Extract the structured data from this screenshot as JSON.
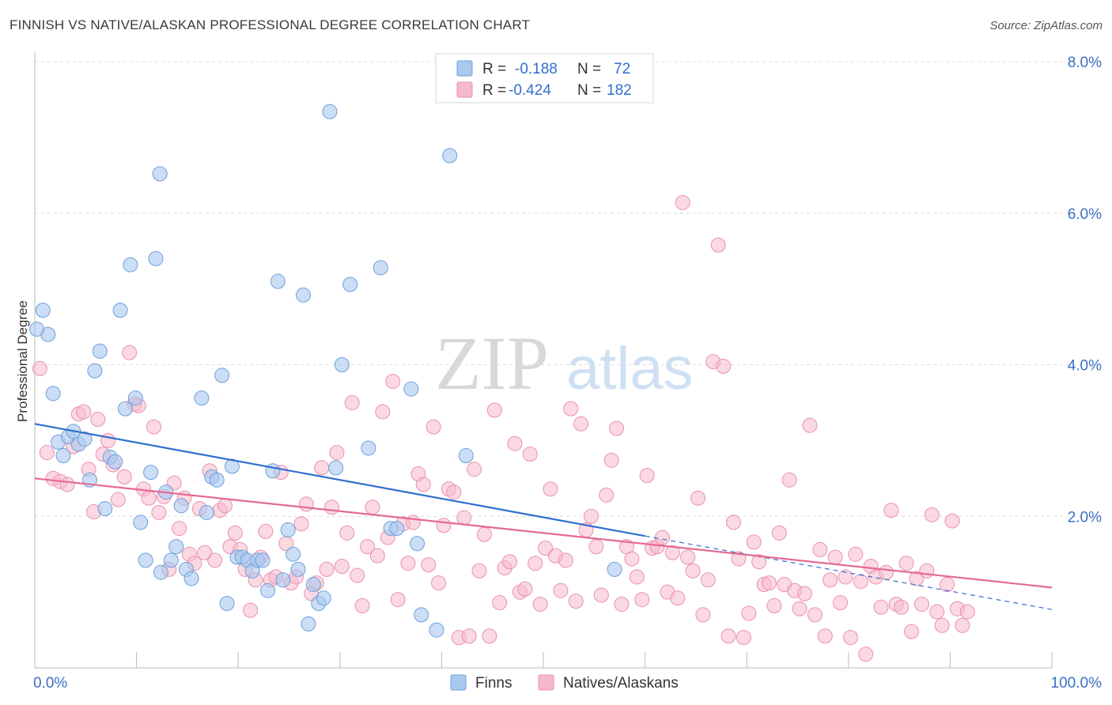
{
  "title": "FINNISH VS NATIVE/ALASKAN PROFESSIONAL DEGREE CORRELATION CHART",
  "source": "Source: ZipAtlas.com",
  "watermark": {
    "zip": "ZIP",
    "atlas": "atlas"
  },
  "legend": {
    "r_label": "R =",
    "n_label": "N =",
    "finns": {
      "r": "-0.188",
      "n": "72"
    },
    "natives": {
      "r": "-0.424",
      "n": "182"
    }
  },
  "bottom_legend": {
    "finns": "Finns",
    "natives": "Natives/Alaskans"
  },
  "colors": {
    "finns_fill": "#a9c8ee",
    "finns_stroke": "#6d9fdc",
    "finns_line": "#2f6fd0",
    "natives_fill": "#f6b9cc",
    "natives_stroke": "#ea90ae",
    "natives_line": "#e46a94",
    "axis_text": "#3c6fc4"
  },
  "chart_data": {
    "type": "scatter",
    "ylabel": "Professional Degree",
    "xlim": [
      0,
      100
    ],
    "ylim": [
      0,
      8.0
    ],
    "yticks": [
      {
        "value": 2.0,
        "label": "2.0%"
      },
      {
        "value": 4.0,
        "label": "4.0%"
      },
      {
        "value": 6.0,
        "label": "6.0%"
      },
      {
        "value": 8.0,
        "label": "8.0%"
      }
    ],
    "xticks": [
      {
        "value": 0,
        "label": "0.0%"
      },
      {
        "value": 100,
        "label": "100.0%"
      }
    ],
    "grid": true,
    "legend_position": "top-center",
    "series": [
      {
        "name": "Finns",
        "trend": {
          "x0": 0,
          "y0": 3.22,
          "x1": 60,
          "y1": 1.74,
          "dashed_to_x": 100,
          "dashed_to_y": 0.77
        },
        "points": [
          [
            0.8,
            4.72
          ],
          [
            1.3,
            4.4
          ],
          [
            1.8,
            3.62
          ],
          [
            2.3,
            2.98
          ],
          [
            2.8,
            2.8
          ],
          [
            3.3,
            3.05
          ],
          [
            3.8,
            3.12
          ],
          [
            4.3,
            2.95
          ],
          [
            4.9,
            3.02
          ],
          [
            5.4,
            2.48
          ],
          [
            5.9,
            3.92
          ],
          [
            6.4,
            4.18
          ],
          [
            6.9,
            2.1
          ],
          [
            7.4,
            2.78
          ],
          [
            7.9,
            2.72
          ],
          [
            8.4,
            4.72
          ],
          [
            8.9,
            3.42
          ],
          [
            9.4,
            5.32
          ],
          [
            9.9,
            3.56
          ],
          [
            10.4,
            1.92
          ],
          [
            10.9,
            1.42
          ],
          [
            11.4,
            2.58
          ],
          [
            11.9,
            5.4
          ],
          [
            12.4,
            1.26
          ],
          [
            12.9,
            2.32
          ],
          [
            13.4,
            1.42
          ],
          [
            13.9,
            1.6
          ],
          [
            14.4,
            2.14
          ],
          [
            14.9,
            1.3
          ],
          [
            15.4,
            1.18
          ],
          [
            12.3,
            6.52
          ],
          [
            16.4,
            3.56
          ],
          [
            16.9,
            2.05
          ],
          [
            17.4,
            2.52
          ],
          [
            17.9,
            2.48
          ],
          [
            18.4,
            3.86
          ],
          [
            18.9,
            0.85
          ],
          [
            19.4,
            2.66
          ],
          [
            19.9,
            1.46
          ],
          [
            20.4,
            1.46
          ],
          [
            20.9,
            1.42
          ],
          [
            21.4,
            1.28
          ],
          [
            21.9,
            1.42
          ],
          [
            22.4,
            1.42
          ],
          [
            22.9,
            1.02
          ],
          [
            23.4,
            2.6
          ],
          [
            23.9,
            5.1
          ],
          [
            24.4,
            1.16
          ],
          [
            24.9,
            1.82
          ],
          [
            25.4,
            1.5
          ],
          [
            25.9,
            1.3
          ],
          [
            26.4,
            4.92
          ],
          [
            26.9,
            0.58
          ],
          [
            27.4,
            1.1
          ],
          [
            27.9,
            0.85
          ],
          [
            28.4,
            0.92
          ],
          [
            29.0,
            7.34
          ],
          [
            29.6,
            2.64
          ],
          [
            30.2,
            4.0
          ],
          [
            31.0,
            5.06
          ],
          [
            32.8,
            2.9
          ],
          [
            34.0,
            5.28
          ],
          [
            35.0,
            1.84
          ],
          [
            35.6,
            1.84
          ],
          [
            37.0,
            3.68
          ],
          [
            38.0,
            0.7
          ],
          [
            37.6,
            1.64
          ],
          [
            39.5,
            0.5
          ],
          [
            40.8,
            6.76
          ],
          [
            42.4,
            2.8
          ],
          [
            57.0,
            1.3
          ],
          [
            0.2,
            4.47
          ]
        ]
      },
      {
        "name": "Natives/Alaskans",
        "trend": {
          "x0": 0,
          "y0": 2.5,
          "x1": 100,
          "y1": 1.06
        },
        "points": [
          [
            0.5,
            3.95
          ],
          [
            1.2,
            2.84
          ],
          [
            1.8,
            2.5
          ],
          [
            2.5,
            2.46
          ],
          [
            3.2,
            2.42
          ],
          [
            3.8,
            2.92
          ],
          [
            4.3,
            3.35
          ],
          [
            4.8,
            3.38
          ],
          [
            5.3,
            2.62
          ],
          [
            5.8,
            2.06
          ],
          [
            6.2,
            3.28
          ],
          [
            6.7,
            2.82
          ],
          [
            7.2,
            3.0
          ],
          [
            7.7,
            2.68
          ],
          [
            8.2,
            2.22
          ],
          [
            8.8,
            2.52
          ],
          [
            9.3,
            4.16
          ],
          [
            9.8,
            3.48
          ],
          [
            10.2,
            3.46
          ],
          [
            10.7,
            2.36
          ],
          [
            11.2,
            2.24
          ],
          [
            11.7,
            3.18
          ],
          [
            12.2,
            2.05
          ],
          [
            12.7,
            2.26
          ],
          [
            13.2,
            1.3
          ],
          [
            13.7,
            2.44
          ],
          [
            14.2,
            1.84
          ],
          [
            14.7,
            2.24
          ],
          [
            15.2,
            1.5
          ],
          [
            15.7,
            1.38
          ],
          [
            16.2,
            2.1
          ],
          [
            16.7,
            1.52
          ],
          [
            17.2,
            2.6
          ],
          [
            17.7,
            1.42
          ],
          [
            18.2,
            2.08
          ],
          [
            18.7,
            2.14
          ],
          [
            19.2,
            1.6
          ],
          [
            19.7,
            1.78
          ],
          [
            20.2,
            1.56
          ],
          [
            20.7,
            1.3
          ],
          [
            21.2,
            0.76
          ],
          [
            21.7,
            1.16
          ],
          [
            22.2,
            1.46
          ],
          [
            22.7,
            1.8
          ],
          [
            23.2,
            1.16
          ],
          [
            23.7,
            1.2
          ],
          [
            24.2,
            2.58
          ],
          [
            24.7,
            1.64
          ],
          [
            25.2,
            1.12
          ],
          [
            25.7,
            1.2
          ],
          [
            26.2,
            1.9
          ],
          [
            26.7,
            2.16
          ],
          [
            27.2,
            0.98
          ],
          [
            27.7,
            1.12
          ],
          [
            28.2,
            2.64
          ],
          [
            28.7,
            1.3
          ],
          [
            29.2,
            2.12
          ],
          [
            29.7,
            2.84
          ],
          [
            30.2,
            1.34
          ],
          [
            30.7,
            1.78
          ],
          [
            31.2,
            3.5
          ],
          [
            31.7,
            1.22
          ],
          [
            32.2,
            0.82
          ],
          [
            32.7,
            1.6
          ],
          [
            33.2,
            2.12
          ],
          [
            33.7,
            1.48
          ],
          [
            34.2,
            3.38
          ],
          [
            34.7,
            1.72
          ],
          [
            35.2,
            3.78
          ],
          [
            35.7,
            0.9
          ],
          [
            36.2,
            1.9
          ],
          [
            36.7,
            1.38
          ],
          [
            37.2,
            1.92
          ],
          [
            37.7,
            2.56
          ],
          [
            38.2,
            2.42
          ],
          [
            38.7,
            1.36
          ],
          [
            39.2,
            3.18
          ],
          [
            39.7,
            1.12
          ],
          [
            40.2,
            1.88
          ],
          [
            40.7,
            2.36
          ],
          [
            41.2,
            2.32
          ],
          [
            41.7,
            0.4
          ],
          [
            42.2,
            1.98
          ],
          [
            42.7,
            0.42
          ],
          [
            43.2,
            2.62
          ],
          [
            43.7,
            1.28
          ],
          [
            44.2,
            1.76
          ],
          [
            44.7,
            0.42
          ],
          [
            45.2,
            3.4
          ],
          [
            45.7,
            0.86
          ],
          [
            46.2,
            1.32
          ],
          [
            46.7,
            1.4
          ],
          [
            47.2,
            2.96
          ],
          [
            47.7,
            1.0
          ],
          [
            48.2,
            1.04
          ],
          [
            48.7,
            2.82
          ],
          [
            49.2,
            1.38
          ],
          [
            49.7,
            0.84
          ],
          [
            50.2,
            1.58
          ],
          [
            50.7,
            2.36
          ],
          [
            51.2,
            1.48
          ],
          [
            51.7,
            1.02
          ],
          [
            52.2,
            1.42
          ],
          [
            52.7,
            3.42
          ],
          [
            53.2,
            0.88
          ],
          [
            53.7,
            3.22
          ],
          [
            54.2,
            1.82
          ],
          [
            54.7,
            2.0
          ],
          [
            55.2,
            1.6
          ],
          [
            55.7,
            0.96
          ],
          [
            56.2,
            2.28
          ],
          [
            56.7,
            2.74
          ],
          [
            57.2,
            3.16
          ],
          [
            57.7,
            0.84
          ],
          [
            58.2,
            1.6
          ],
          [
            58.7,
            1.44
          ],
          [
            59.2,
            1.2
          ],
          [
            59.7,
            0.9
          ],
          [
            60.2,
            2.54
          ],
          [
            60.7,
            1.58
          ],
          [
            61.2,
            1.6
          ],
          [
            61.7,
            1.72
          ],
          [
            62.2,
            1.0
          ],
          [
            62.7,
            1.52
          ],
          [
            63.2,
            0.92
          ],
          [
            63.7,
            6.14
          ],
          [
            64.2,
            1.46
          ],
          [
            64.7,
            1.28
          ],
          [
            65.2,
            2.24
          ],
          [
            65.7,
            0.7
          ],
          [
            66.2,
            1.16
          ],
          [
            66.7,
            4.04
          ],
          [
            67.2,
            5.58
          ],
          [
            67.7,
            3.98
          ],
          [
            68.2,
            0.42
          ],
          [
            68.7,
            1.92
          ],
          [
            69.2,
            1.44
          ],
          [
            69.7,
            0.4
          ],
          [
            70.2,
            0.72
          ],
          [
            70.7,
            1.66
          ],
          [
            71.2,
            1.4
          ],
          [
            71.7,
            1.1
          ],
          [
            72.2,
            1.12
          ],
          [
            72.7,
            0.82
          ],
          [
            73.2,
            1.78
          ],
          [
            73.7,
            1.1
          ],
          [
            74.2,
            2.48
          ],
          [
            74.7,
            1.02
          ],
          [
            75.2,
            0.78
          ],
          [
            75.7,
            0.98
          ],
          [
            76.2,
            3.2
          ],
          [
            76.7,
            0.7
          ],
          [
            77.2,
            1.56
          ],
          [
            77.7,
            0.42
          ],
          [
            78.2,
            1.16
          ],
          [
            78.7,
            1.46
          ],
          [
            79.2,
            0.86
          ],
          [
            79.7,
            1.2
          ],
          [
            80.2,
            0.4
          ],
          [
            80.7,
            1.5
          ],
          [
            81.2,
            1.14
          ],
          [
            81.7,
            0.18
          ],
          [
            82.2,
            1.34
          ],
          [
            82.7,
            1.2
          ],
          [
            83.2,
            0.8
          ],
          [
            83.7,
            1.26
          ],
          [
            84.2,
            2.08
          ],
          [
            84.7,
            0.84
          ],
          [
            85.2,
            0.8
          ],
          [
            85.7,
            1.38
          ],
          [
            86.2,
            0.48
          ],
          [
            86.7,
            1.18
          ],
          [
            87.2,
            0.84
          ],
          [
            87.7,
            1.28
          ],
          [
            88.2,
            2.02
          ],
          [
            88.7,
            0.74
          ],
          [
            89.2,
            0.56
          ],
          [
            89.7,
            1.1
          ],
          [
            90.2,
            1.94
          ],
          [
            90.7,
            0.78
          ],
          [
            91.2,
            0.56
          ],
          [
            91.7,
            0.74
          ]
        ]
      }
    ]
  }
}
